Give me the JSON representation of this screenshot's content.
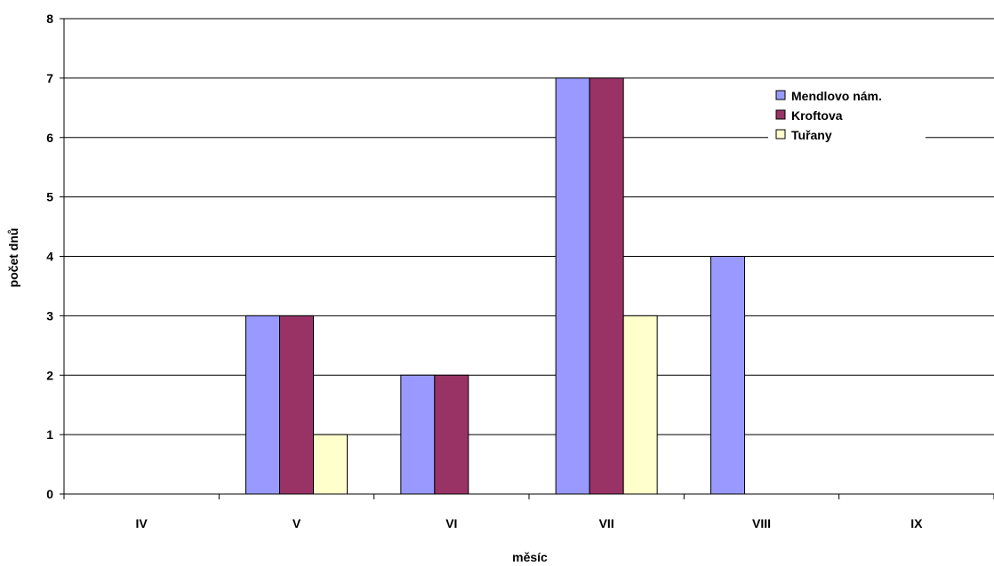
{
  "chart_data": {
    "type": "bar",
    "title": "",
    "xlabel": "měsíc",
    "ylabel": "počet dnů",
    "ylim": [
      0,
      8
    ],
    "yticks": [
      "0",
      "1",
      "2",
      "3",
      "4",
      "5",
      "6",
      "7",
      "8"
    ],
    "categories": [
      "IV",
      "V",
      "VI",
      "VII",
      "VIII",
      "IX"
    ],
    "grid": true,
    "legend_position": "top-right",
    "series": [
      {
        "name": "Mendlovo nám.",
        "color": "#9999ff",
        "values": [
          0,
          3,
          2,
          7,
          4,
          0
        ]
      },
      {
        "name": "Kroftova",
        "color": "#993366",
        "values": [
          0,
          3,
          2,
          7,
          0,
          0
        ]
      },
      {
        "name": "Tuřany",
        "color": "#ffffcc",
        "values": [
          0,
          1,
          0,
          3,
          0,
          0
        ]
      }
    ]
  }
}
